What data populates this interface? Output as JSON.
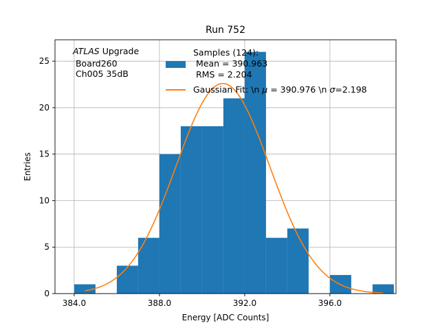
{
  "chart_data": {
    "type": "bar",
    "title": "Run 752",
    "xlabel": "Energy [ADC Counts]",
    "ylabel": "Entries",
    "xlim": [
      383.1,
      399.1
    ],
    "ylim": [
      0,
      27.3
    ],
    "grid": true,
    "x_ticks": [
      384,
      388,
      392,
      396
    ],
    "x_tick_labels": [
      "384.0",
      "388.0",
      "392.0",
      "396.0"
    ],
    "y_ticks": [
      0,
      5,
      10,
      15,
      20,
      25
    ],
    "y_tick_labels": [
      "0",
      "5",
      "10",
      "15",
      "20",
      "25"
    ],
    "bins": [
      {
        "x0": 384,
        "x1": 385,
        "count": 1
      },
      {
        "x0": 385,
        "x1": 386,
        "count": 0
      },
      {
        "x0": 386,
        "x1": 387,
        "count": 3
      },
      {
        "x0": 387,
        "x1": 388,
        "count": 6
      },
      {
        "x0": 388,
        "x1": 389,
        "count": 15
      },
      {
        "x0": 389,
        "x1": 390,
        "count": 18
      },
      {
        "x0": 390,
        "x1": 391,
        "count": 18
      },
      {
        "x0": 391,
        "x1": 392,
        "count": 21
      },
      {
        "x0": 392,
        "x1": 393,
        "count": 26
      },
      {
        "x0": 393,
        "x1": 394,
        "count": 6
      },
      {
        "x0": 394,
        "x1": 395,
        "count": 7
      },
      {
        "x0": 395,
        "x1": 396,
        "count": 0
      },
      {
        "x0": 396,
        "x1": 397,
        "count": 2
      },
      {
        "x0": 397,
        "x1": 398,
        "count": 0
      },
      {
        "x0": 398,
        "x1": 399,
        "count": 1
      }
    ],
    "fit": {
      "type": "gaussian",
      "mu": 390.976,
      "sigma": 2.198,
      "amplitude": 22.6,
      "x_range": [
        384.5,
        398.5
      ]
    },
    "colors": {
      "bars": "#1f77b4",
      "fit": "#ff7f0e",
      "grid": "#b0b0b0"
    },
    "legend_position": "upper-right",
    "legend": [
      {
        "kind": "bar",
        "lines": [
          "Samples (124):",
          " Mean = 390.963",
          " RMS = 2.204"
        ]
      },
      {
        "kind": "line",
        "prefix": "Gaussian Fit: \\n ",
        "mu_symbol": "μ",
        "mu_text": " = 390.976 \\n ",
        "sigma_symbol": "σ",
        "sigma_text": "=2.198"
      }
    ],
    "annotation": {
      "italic": "ATLAS",
      "rest": " Upgrade",
      "lines": [
        " Board260",
        " Ch005 35dB"
      ]
    }
  }
}
